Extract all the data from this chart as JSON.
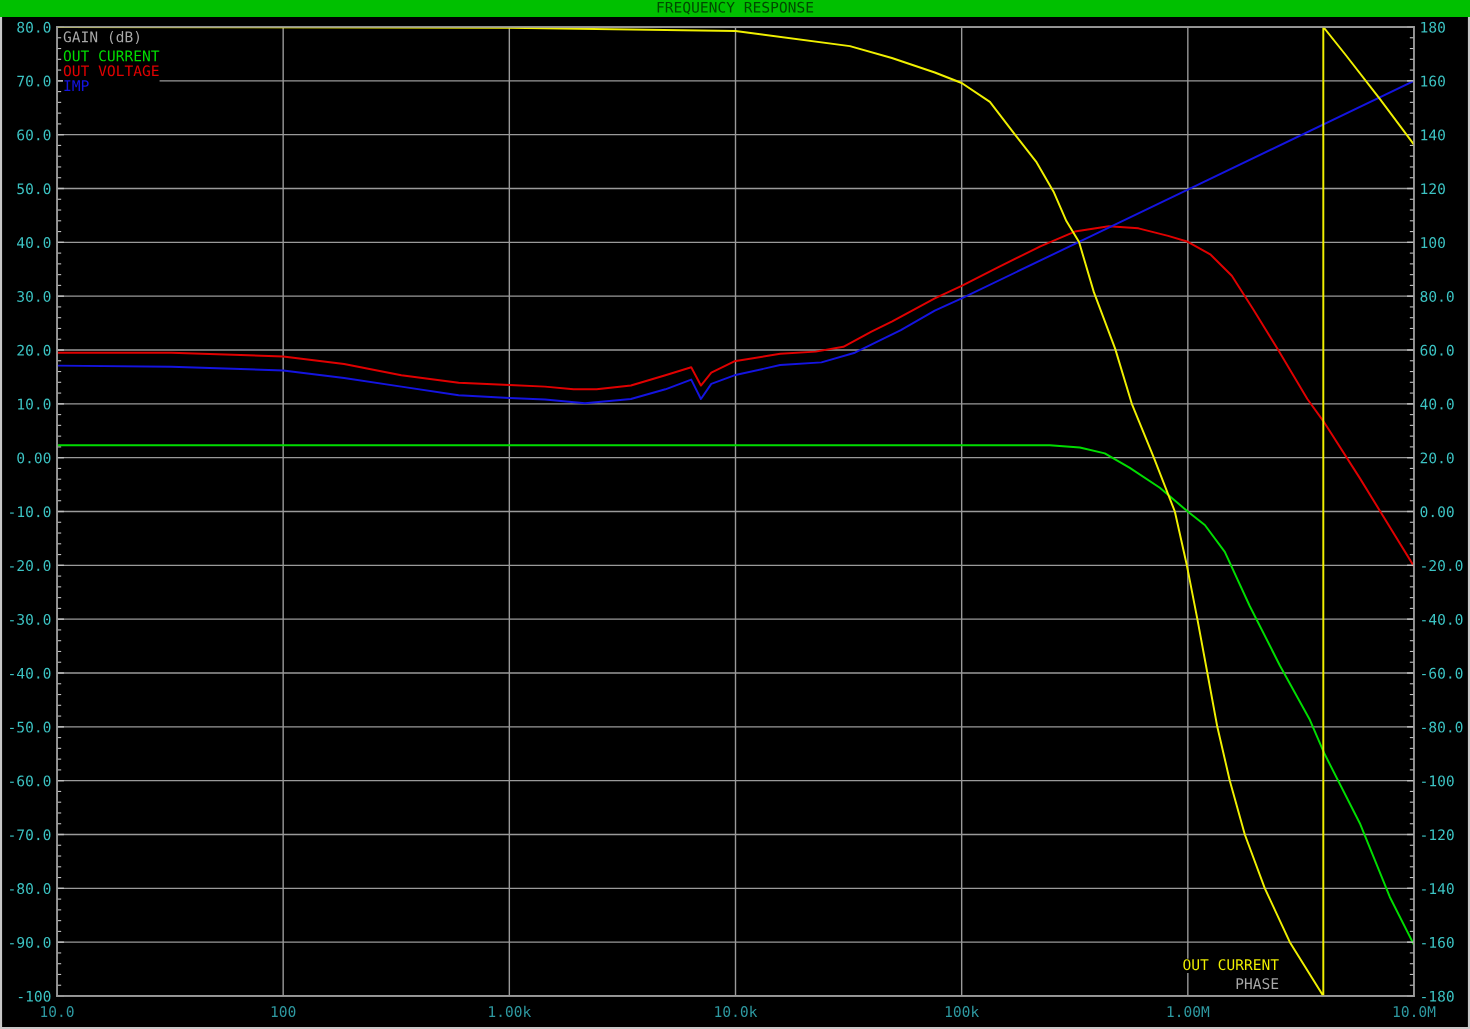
{
  "chart_data": {
    "type": "line",
    "title": "FREQUENCY RESPONSE",
    "ylabel": "GAIN (dB)",
    "y2label": "PHASE",
    "log": "x",
    "grid": true,
    "legend": "top left",
    "marker": "none",
    "line_style": "solid",
    "xlim": [
      10,
      10000000
    ],
    "xticks": [
      {
        "value": 10,
        "label": "10.0"
      },
      100,
      {
        "value": 1000,
        "label": "1.00k"
      },
      {
        "value": 10000,
        "label": "10.0k"
      },
      {
        "value": 100000,
        "label": "100k"
      },
      {
        "value": 1000000,
        "label": "1.00M"
      },
      {
        "value": 10000000,
        "label": "10.0M"
      }
    ],
    "ylim": [
      -100,
      80
    ],
    "yticks": [
      -100,
      {
        "value": -90,
        "label": "-90.0"
      },
      {
        "value": -80,
        "label": "-80.0"
      },
      {
        "value": -70,
        "label": "-70.0"
      },
      {
        "value": -60,
        "label": "-60.0"
      },
      {
        "value": -50,
        "label": "-50.0"
      },
      {
        "value": -40,
        "label": "-40.0"
      },
      {
        "value": -30,
        "label": "-30.0"
      },
      {
        "value": -20,
        "label": "-20.0"
      },
      {
        "value": -10,
        "label": "-10.0"
      },
      {
        "value": 0,
        "label": "0.00"
      },
      {
        "value": 10,
        "label": "10.0"
      },
      {
        "value": 20,
        "label": "20.0"
      },
      {
        "value": 30,
        "label": "30.0"
      },
      {
        "value": 40,
        "label": "40.0"
      },
      {
        "value": 50,
        "label": "50.0"
      },
      {
        "value": 60,
        "label": "60.0"
      },
      {
        "value": 70,
        "label": "70.0"
      },
      {
        "value": 80,
        "label": "80.0"
      }
    ],
    "y2lim": [
      -180,
      180
    ],
    "y2ticks": [
      -180,
      -160,
      -140,
      -120,
      -100,
      {
        "value": -80,
        "label": "-80.0"
      },
      {
        "value": -60,
        "label": "-60.0"
      },
      {
        "value": -40,
        "label": "-40.0"
      },
      {
        "value": -20,
        "label": "-20.0"
      },
      {
        "value": 0,
        "label": "0.00"
      },
      {
        "value": 20,
        "label": "20.0"
      },
      {
        "value": 40,
        "label": "40.0"
      },
      {
        "value": 60,
        "label": "60.0"
      },
      {
        "value": 80,
        "label": "80.0"
      },
      100,
      120,
      140,
      160,
      180
    ],
    "series": [
      {
        "name": "OUT CURRENT",
        "color": "#00dd00",
        "x": [
          10,
          100000,
          245000,
          333000,
          429500,
          554000,
          752000,
          1005000,
          1189000,
          1457000,
          1880000,
          2552000,
          3463000,
          4030000,
          5760000,
          7817000,
          10000000
        ],
        "values": [
          2.3,
          2.3,
          2.3,
          1.9,
          0.8,
          -1.9,
          -5.6,
          -10.1,
          -12.5,
          -17.5,
          -27.6,
          -38.6,
          -48.7,
          -55.1,
          -67.9,
          -81.6,
          -90.5
        ]
      },
      {
        "name": "OUT VOLTAGE",
        "color": "#e00000",
        "x": [
          10,
          32,
          100,
          186,
          333,
          597,
          1000,
          1437,
          1925,
          2430,
          3448,
          4898,
          6372,
          7031,
          7816,
          9878,
          15760,
          22620,
          29990,
          39900,
          49330,
          76040,
          100000,
          145400,
          224000,
          316500,
          447400,
          604900,
          818400,
          1000000,
          1262000,
          1565000,
          1942000,
          2495000,
          3377000,
          3972000,
          5760000,
          10000000
        ],
        "values": [
          19.5,
          19.5,
          18.8,
          17.4,
          15.3,
          13.9,
          13.5,
          13.2,
          12.7,
          12.7,
          13.4,
          15.3,
          16.8,
          13.4,
          15.8,
          17.9,
          19.3,
          19.7,
          20.6,
          23.4,
          25.3,
          29.6,
          31.9,
          35.4,
          39.3,
          42.0,
          43.0,
          42.6,
          41.2,
          40.1,
          37.7,
          33.8,
          27.6,
          20.2,
          10.9,
          6.8,
          -3.8,
          -20.2
        ]
      },
      {
        "name": "IMP",
        "color": "#1414e0",
        "x": [
          10,
          32,
          100,
          186,
          333,
          597,
          1000,
          1437,
          2159,
          3448,
          4898,
          6372,
          7031,
          7816,
          9878,
          15760,
          23980,
          33720,
          53840,
          76040,
          100000,
          1000000,
          10000000
        ],
        "values": [
          17.1,
          16.9,
          16.2,
          14.8,
          13.2,
          11.6,
          11.1,
          10.8,
          10.1,
          10.9,
          12.7,
          14.5,
          10.9,
          13.7,
          15.3,
          17.2,
          17.7,
          19.5,
          23.7,
          27.3,
          29.6,
          49.8,
          70.0
        ]
      },
      {
        "name": "OUT CURRENT",
        "color": "#f0f000",
        "axis": "y2",
        "x": [
          10,
          1000,
          10000,
          32050,
          49130,
          76110,
          100000,
          133300,
          172800,
          214600,
          254900,
          290400,
          330400,
          384100,
          477000,
          565400,
          707400,
          876000,
          990000,
          1102000,
          1220000,
          1350000,
          1533000,
          1786000,
          2190000,
          2825000,
          3972000,
          3972000,
          4990000,
          7060000,
          10000000
        ],
        "values": [
          180,
          179.7,
          178.5,
          172.9,
          168.5,
          163.1,
          159.2,
          152.2,
          139.8,
          129.7,
          118.8,
          107.9,
          100.1,
          81.5,
          60.5,
          40,
          20,
          0,
          -20,
          -40,
          -60,
          -80,
          -100,
          -120,
          -140,
          -160,
          -180,
          180,
          169.6,
          153.3,
          136.3
        ]
      }
    ]
  }
}
